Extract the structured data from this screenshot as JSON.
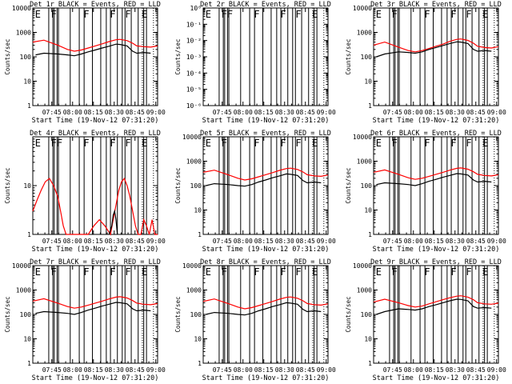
{
  "chart_data": [
    {
      "type": "line",
      "title": "Det 1r BLACK = Events, RED = LLD",
      "xlabel": "Start Time (19-Nov-12 07:31:20)",
      "ylabel": "Counts/sec",
      "scale": "log",
      "ylim": [
        1,
        10000
      ],
      "yticks": [
        "1",
        "10",
        "100",
        "1000",
        "10000"
      ],
      "xticks": [
        "07:45",
        "08:00",
        "08:15",
        "08:30",
        "08:45",
        "09:00"
      ],
      "flags": [
        "E",
        "F",
        "F",
        "F",
        "F",
        "E"
      ],
      "series": [
        {
          "color": "#ff0000",
          "x": [
            0,
            8,
            18,
            25,
            30,
            35,
            40,
            45,
            50,
            55,
            60,
            63,
            68,
            72,
            75,
            80,
            85,
            90
          ],
          "y": [
            400,
            480,
            300,
            200,
            170,
            190,
            230,
            280,
            340,
            420,
            500,
            520,
            460,
            360,
            280,
            260,
            250,
            280
          ]
        },
        {
          "color": "#000000",
          "x": [
            2,
            8,
            18,
            25,
            30,
            35,
            40,
            45,
            50,
            55,
            60,
            63,
            68,
            72,
            75,
            80,
            85
          ],
          "y": [
            120,
            140,
            130,
            120,
            110,
            130,
            160,
            190,
            230,
            270,
            330,
            320,
            280,
            170,
            140,
            150,
            140
          ]
        }
      ]
    },
    {
      "type": "line",
      "title": "Det 2r BLACK = Events, RED = LLD",
      "xlabel": "Start Time (19-Nov-12 07:31:20)",
      "ylabel": "Counts/sec",
      "scale": "log",
      "ylim": [
        1e-06,
        1
      ],
      "yticks": [
        "10⁻⁶",
        "10⁻⁵",
        "10⁻⁴",
        "10⁻³",
        "10⁻²",
        "10⁻¹",
        "10⁰"
      ],
      "xticks": [
        "07:45",
        "08:00",
        "08:15",
        "08:30",
        "08:45",
        "09:00"
      ],
      "flags": [
        "E",
        "FF",
        "F",
        "F",
        "F",
        "E"
      ],
      "series": []
    },
    {
      "type": "line",
      "title": "Det 3r BLACK = Events, RED = LLD",
      "xlabel": "Start Time (19-Nov-12 07:31:20)",
      "ylabel": "Counts/sec",
      "scale": "log",
      "ylim": [
        1,
        10000
      ],
      "yticks": [
        "1",
        "10",
        "100",
        "1000",
        "10000"
      ],
      "xticks": [
        "07:45",
        "08:00",
        "08:15",
        "08:30",
        "08:45",
        "09:00"
      ],
      "flags": [
        "E",
        "F",
        "F",
        "F",
        "F",
        "E"
      ],
      "series": [
        {
          "color": "#ff0000",
          "x": [
            0,
            8,
            18,
            25,
            30,
            35,
            40,
            45,
            50,
            55,
            60,
            63,
            68,
            72,
            75,
            80,
            85,
            90
          ],
          "y": [
            300,
            400,
            250,
            180,
            160,
            180,
            220,
            270,
            330,
            430,
            520,
            540,
            470,
            360,
            270,
            240,
            230,
            260
          ]
        },
        {
          "color": "#000000",
          "x": [
            2,
            8,
            18,
            25,
            30,
            35,
            40,
            45,
            50,
            55,
            60,
            63,
            68,
            72,
            75,
            80,
            85
          ],
          "y": [
            100,
            130,
            160,
            150,
            140,
            160,
            200,
            240,
            290,
            350,
            410,
            400,
            350,
            200,
            170,
            180,
            170
          ]
        }
      ]
    },
    {
      "type": "line",
      "title": "Det 4r BLACK = Events, RED = LLD",
      "xlabel": "Start Time (19-Nov-12 07:31:20)",
      "ylabel": "Counts/sec",
      "scale": "log",
      "ylim": [
        1,
        100
      ],
      "yticks": [
        "1",
        "10"
      ],
      "xticks": [
        "07:45",
        "08:00",
        "08:15",
        "08:30",
        "08:45",
        "09:00"
      ],
      "flags": [
        "E",
        "FF",
        "F",
        "F",
        "F",
        "E"
      ],
      "series": [
        {
          "color": "#ff0000",
          "x": [
            0,
            3,
            6,
            9,
            12,
            15,
            18,
            20,
            22,
            24,
            40,
            44,
            48,
            52,
            56,
            58,
            60,
            62,
            64,
            66,
            68,
            70,
            72,
            74,
            76,
            78,
            80,
            82,
            84,
            86,
            88,
            90
          ],
          "y": [
            3,
            5,
            8,
            12,
            14,
            10,
            6,
            3,
            1.5,
            1,
            1,
            1.5,
            2,
            1.5,
            1,
            2,
            4,
            8,
            12,
            14,
            10,
            6,
            3,
            1.5,
            1,
            1,
            2,
            1.5,
            1,
            2,
            1,
            1
          ]
        },
        {
          "color": "#000000",
          "x": [
            55,
            57,
            58,
            59,
            60,
            61
          ],
          "y": [
            1,
            1.5,
            2.5,
            3,
            2,
            1
          ]
        }
      ]
    },
    {
      "type": "line",
      "title": "Det 5r BLACK = Events, RED = LLD",
      "xlabel": "Start Time (19-Nov-12 07:31:20)",
      "ylabel": "Counts/sec",
      "scale": "log",
      "ylim": [
        1,
        10000
      ],
      "yticks": [
        "1",
        "10",
        "100",
        "1000",
        "10000"
      ],
      "xticks": [
        "07:45",
        "08:00",
        "08:15",
        "08:30",
        "08:45",
        "09:00"
      ],
      "flags": [
        "E",
        "F",
        "F",
        "F",
        "F",
        "E"
      ],
      "series": [
        {
          "color": "#ff0000",
          "x": [
            0,
            8,
            18,
            25,
            30,
            35,
            40,
            45,
            50,
            55,
            60,
            63,
            68,
            72,
            75,
            80,
            85,
            90
          ],
          "y": [
            350,
            430,
            280,
            200,
            170,
            190,
            230,
            280,
            340,
            420,
            500,
            520,
            460,
            360,
            280,
            250,
            240,
            270
          ]
        },
        {
          "color": "#000000",
          "x": [
            2,
            8,
            18,
            25,
            30,
            35,
            40,
            45,
            50,
            55,
            60,
            63,
            68,
            72,
            75,
            80,
            85
          ],
          "y": [
            100,
            120,
            110,
            100,
            95,
            110,
            140,
            170,
            210,
            250,
            300,
            290,
            260,
            160,
            130,
            140,
            130
          ]
        }
      ]
    },
    {
      "type": "line",
      "title": "Det 6r BLACK = Events, RED = LLD",
      "xlabel": "Start Time (19-Nov-12 07:31:20)",
      "ylabel": "Counts/sec",
      "scale": "log",
      "ylim": [
        1,
        10000
      ],
      "yticks": [
        "1",
        "10",
        "100",
        "1000",
        "10000"
      ],
      "xticks": [
        "07:45",
        "08:00",
        "08:15",
        "08:30",
        "08:45",
        "09:00"
      ],
      "flags": [
        "E",
        "F",
        "F",
        "F",
        "F",
        "E"
      ],
      "series": [
        {
          "color": "#ff0000",
          "x": [
            0,
            8,
            18,
            25,
            30,
            35,
            40,
            45,
            50,
            55,
            60,
            63,
            68,
            72,
            75,
            80,
            85,
            90
          ],
          "y": [
            350,
            440,
            290,
            210,
            180,
            200,
            240,
            290,
            350,
            430,
            510,
            530,
            470,
            370,
            290,
            260,
            250,
            280
          ]
        },
        {
          "color": "#000000",
          "x": [
            2,
            8,
            18,
            25,
            30,
            35,
            40,
            45,
            50,
            55,
            60,
            63,
            68,
            72,
            75,
            80,
            85
          ],
          "y": [
            110,
            130,
            120,
            110,
            100,
            120,
            150,
            180,
            220,
            260,
            310,
            300,
            270,
            170,
            140,
            150,
            140
          ]
        }
      ]
    },
    {
      "type": "line",
      "title": "Det 7r BLACK = Events, RED = LLD",
      "xlabel": "Start Time (19-Nov-12 07:31:20)",
      "ylabel": "Counts/sec",
      "scale": "log",
      "ylim": [
        1,
        10000
      ],
      "yticks": [
        "1",
        "10",
        "100",
        "1000",
        "10000"
      ],
      "xticks": [
        "07:45",
        "08:00",
        "08:15",
        "08:30",
        "08:45",
        "09:00"
      ],
      "flags": [
        "E",
        "F",
        "F",
        "F",
        "F",
        "E"
      ],
      "series": [
        {
          "color": "#ff0000",
          "x": [
            0,
            8,
            18,
            25,
            30,
            35,
            40,
            45,
            50,
            55,
            60,
            63,
            68,
            72,
            75,
            80,
            85,
            90
          ],
          "y": [
            350,
            440,
            290,
            210,
            180,
            200,
            240,
            290,
            350,
            430,
            510,
            530,
            470,
            370,
            290,
            260,
            250,
            280
          ]
        },
        {
          "color": "#000000",
          "x": [
            2,
            8,
            18,
            25,
            30,
            35,
            40,
            45,
            50,
            55,
            60,
            63,
            68,
            72,
            75,
            80,
            85
          ],
          "y": [
            110,
            130,
            120,
            110,
            100,
            120,
            150,
            180,
            220,
            260,
            310,
            300,
            270,
            170,
            140,
            150,
            140
          ]
        }
      ]
    },
    {
      "type": "line",
      "title": "Det 8r BLACK = Events, RED = LLD",
      "xlabel": "Start Time (19-Nov-12 07:31:20)",
      "ylabel": "Counts/sec",
      "scale": "log",
      "ylim": [
        1,
        10000
      ],
      "yticks": [
        "1",
        "10",
        "100",
        "1000",
        "10000"
      ],
      "xticks": [
        "07:45",
        "08:00",
        "08:15",
        "08:30",
        "08:45",
        "09:00"
      ],
      "flags": [
        "E",
        "F",
        "F",
        "F",
        "F",
        "E"
      ],
      "series": [
        {
          "color": "#ff0000",
          "x": [
            0,
            8,
            18,
            25,
            30,
            35,
            40,
            45,
            50,
            55,
            60,
            63,
            68,
            72,
            75,
            80,
            85,
            90
          ],
          "y": [
            340,
            430,
            280,
            200,
            170,
            190,
            230,
            280,
            340,
            420,
            500,
            520,
            460,
            360,
            280,
            250,
            240,
            270
          ]
        },
        {
          "color": "#000000",
          "x": [
            2,
            8,
            18,
            25,
            30,
            35,
            40,
            45,
            50,
            55,
            60,
            63,
            68,
            72,
            75,
            80,
            85
          ],
          "y": [
            100,
            120,
            110,
            100,
            95,
            110,
            140,
            170,
            210,
            250,
            300,
            290,
            260,
            160,
            130,
            140,
            130
          ]
        }
      ]
    },
    {
      "type": "line",
      "title": "Det 9r BLACK = Events, RED = LLD",
      "xlabel": "Start Time (19-Nov-12 07:31:20)",
      "ylabel": "Counts/sec",
      "scale": "log",
      "ylim": [
        1,
        10000
      ],
      "yticks": [
        "1",
        "10",
        "100",
        "1000",
        "10000"
      ],
      "xticks": [
        "07:45",
        "08:00",
        "08:15",
        "08:30",
        "08:45",
        "09:00"
      ],
      "flags": [
        "E",
        "F",
        "F",
        "F",
        "F",
        "E"
      ],
      "series": [
        {
          "color": "#ff0000",
          "x": [
            0,
            8,
            18,
            25,
            30,
            35,
            40,
            45,
            50,
            55,
            60,
            63,
            68,
            72,
            75,
            80,
            85,
            90
          ],
          "y": [
            320,
            420,
            300,
            230,
            200,
            220,
            270,
            330,
            400,
            480,
            560,
            580,
            510,
            400,
            300,
            270,
            260,
            290
          ]
        },
        {
          "color": "#000000",
          "x": [
            2,
            8,
            18,
            25,
            30,
            35,
            40,
            45,
            50,
            55,
            60,
            63,
            68,
            72,
            75,
            80,
            85
          ],
          "y": [
            100,
            130,
            170,
            160,
            150,
            170,
            210,
            250,
            300,
            360,
            420,
            410,
            360,
            210,
            180,
            190,
            180
          ]
        }
      ]
    }
  ],
  "events": {
    "solid": [
      11.5,
      14.5,
      15.5,
      17.5,
      18.5,
      27,
      33.5,
      37,
      43,
      49,
      53,
      56,
      61,
      64.5,
      66.5,
      71,
      76,
      80,
      82
    ],
    "dotted": [
      79,
      87,
      90
    ]
  }
}
